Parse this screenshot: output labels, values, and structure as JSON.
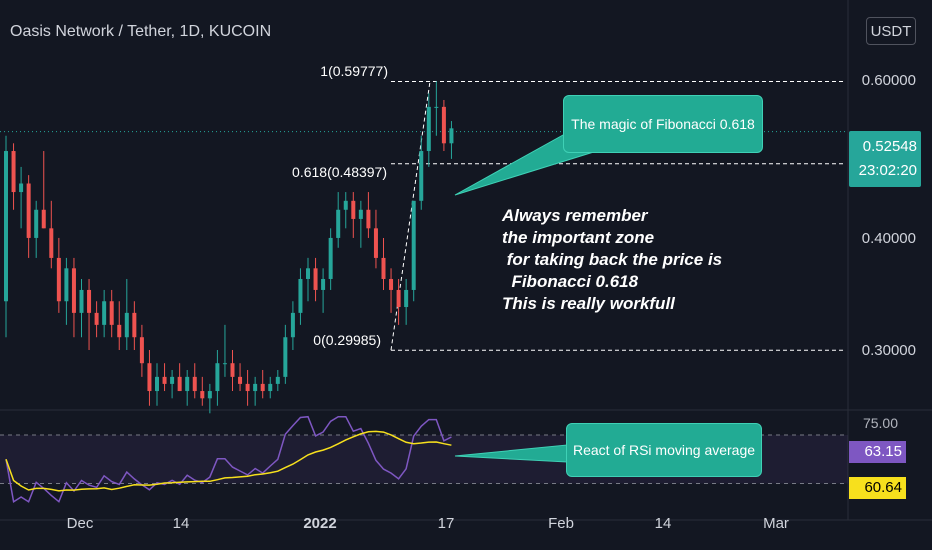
{
  "title": "Oasis Network / Tether, 1D, KUCOIN",
  "currency_button": "USDT",
  "last_price": "0.52548",
  "countdown": "23:02:20",
  "fib_labels": {
    "top": "1(0.59777)",
    "mid": "0.618(0.48397)",
    "bottom": "0(0.29985)"
  },
  "callouts": {
    "fib": "The magic of Fibonacci 0.618",
    "rsi": "React of RSi moving average"
  },
  "note": "Always remember\nthe important zone\n for taking back the price is\n  Fibonacci 0.618\nThis is really workfull",
  "rsi_axis_label": "75.00",
  "rsi_value": "63.15",
  "rsi_ma_value": "60.64",
  "colors": {
    "up": "#26a69a",
    "down": "#ef5350",
    "background": "#131722",
    "rsi": "#7e57c2",
    "rsi_ma": "#f7e01d",
    "callout": "#22ab94"
  },
  "chart_data": {
    "type": "candlestick",
    "title": "Oasis Network / Tether, 1D, KUCOIN",
    "x_ticks": [
      "Dec",
      "14",
      "2022",
      "17",
      "Feb",
      "14",
      "Mar"
    ],
    "y_ticks": [
      "0.60000",
      "0.40000",
      "0.30000"
    ],
    "y_scale": "log",
    "ylim": [
      0.235,
      0.665
    ],
    "fibonacci": [
      {
        "level": 1,
        "price": 0.59777
      },
      {
        "level": 0.618,
        "price": 0.48397
      },
      {
        "level": 0,
        "price": 0.29985
      }
    ],
    "last_price": 0.52548,
    "candles": [
      [
        0.34,
        0.52,
        0.31,
        0.5
      ],
      [
        0.5,
        0.51,
        0.43,
        0.45
      ],
      [
        0.45,
        0.48,
        0.41,
        0.46
      ],
      [
        0.46,
        0.47,
        0.38,
        0.4
      ],
      [
        0.4,
        0.44,
        0.38,
        0.43
      ],
      [
        0.43,
        0.5,
        0.41,
        0.41
      ],
      [
        0.41,
        0.44,
        0.37,
        0.38
      ],
      [
        0.38,
        0.4,
        0.33,
        0.34
      ],
      [
        0.34,
        0.38,
        0.32,
        0.37
      ],
      [
        0.37,
        0.38,
        0.31,
        0.33
      ],
      [
        0.33,
        0.36,
        0.31,
        0.35
      ],
      [
        0.35,
        0.36,
        0.3,
        0.33
      ],
      [
        0.33,
        0.34,
        0.31,
        0.32
      ],
      [
        0.32,
        0.35,
        0.31,
        0.34
      ],
      [
        0.34,
        0.35,
        0.31,
        0.32
      ],
      [
        0.32,
        0.34,
        0.3,
        0.31
      ],
      [
        0.31,
        0.36,
        0.3,
        0.33
      ],
      [
        0.33,
        0.34,
        0.3,
        0.31
      ],
      [
        0.31,
        0.32,
        0.28,
        0.29
      ],
      [
        0.29,
        0.3,
        0.26,
        0.27
      ],
      [
        0.27,
        0.29,
        0.26,
        0.28
      ],
      [
        0.28,
        0.29,
        0.27,
        0.275
      ],
      [
        0.275,
        0.285,
        0.265,
        0.28
      ],
      [
        0.28,
        0.29,
        0.27,
        0.27
      ],
      [
        0.27,
        0.285,
        0.26,
        0.28
      ],
      [
        0.28,
        0.29,
        0.265,
        0.27
      ],
      [
        0.27,
        0.28,
        0.26,
        0.265
      ],
      [
        0.265,
        0.275,
        0.255,
        0.27
      ],
      [
        0.27,
        0.3,
        0.26,
        0.29
      ],
      [
        0.29,
        0.32,
        0.28,
        0.29
      ],
      [
        0.29,
        0.3,
        0.27,
        0.28
      ],
      [
        0.28,
        0.29,
        0.27,
        0.275
      ],
      [
        0.275,
        0.285,
        0.26,
        0.27
      ],
      [
        0.27,
        0.28,
        0.26,
        0.275
      ],
      [
        0.275,
        0.285,
        0.265,
        0.27
      ],
      [
        0.27,
        0.28,
        0.265,
        0.275
      ],
      [
        0.275,
        0.285,
        0.27,
        0.28
      ],
      [
        0.28,
        0.32,
        0.275,
        0.31
      ],
      [
        0.31,
        0.34,
        0.3,
        0.33
      ],
      [
        0.33,
        0.37,
        0.32,
        0.36
      ],
      [
        0.36,
        0.38,
        0.34,
        0.37
      ],
      [
        0.37,
        0.38,
        0.34,
        0.35
      ],
      [
        0.35,
        0.37,
        0.33,
        0.36
      ],
      [
        0.36,
        0.41,
        0.35,
        0.4
      ],
      [
        0.4,
        0.45,
        0.39,
        0.43
      ],
      [
        0.43,
        0.45,
        0.41,
        0.44
      ],
      [
        0.44,
        0.45,
        0.4,
        0.42
      ],
      [
        0.42,
        0.44,
        0.39,
        0.43
      ],
      [
        0.43,
        0.45,
        0.4,
        0.41
      ],
      [
        0.41,
        0.43,
        0.37,
        0.38
      ],
      [
        0.38,
        0.4,
        0.35,
        0.36
      ],
      [
        0.36,
        0.37,
        0.33,
        0.35
      ],
      [
        0.35,
        0.36,
        0.32,
        0.335
      ],
      [
        0.335,
        0.36,
        0.32,
        0.35
      ],
      [
        0.35,
        0.44,
        0.34,
        0.44
      ],
      [
        0.44,
        0.52,
        0.43,
        0.5
      ],
      [
        0.5,
        0.58,
        0.48,
        0.56
      ],
      [
        0.56,
        0.598,
        0.52,
        0.56
      ],
      [
        0.56,
        0.57,
        0.5,
        0.51
      ],
      [
        0.51,
        0.54,
        0.49,
        0.53
      ]
    ],
    "rsi": {
      "ylim": [
        0,
        100
      ],
      "tick": "75.00",
      "current": 63.15,
      "ma_current": 60.64
    }
  }
}
